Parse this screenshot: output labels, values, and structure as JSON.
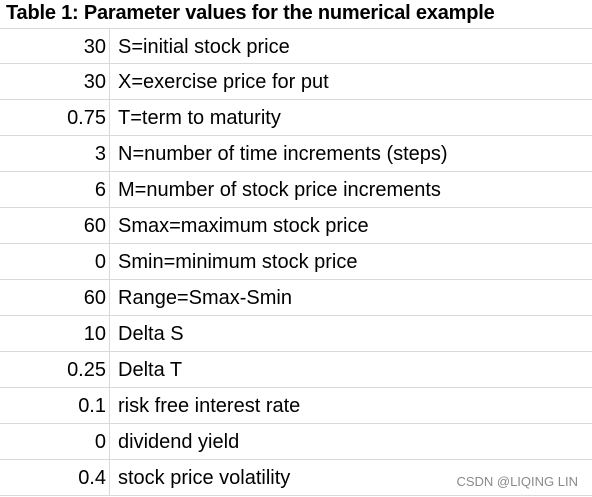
{
  "table": {
    "title": "Table 1: Parameter values for the numerical example",
    "rows": [
      {
        "value": "30",
        "desc": "S=initial stock price"
      },
      {
        "value": "30",
        "desc": "X=exercise price for put"
      },
      {
        "value": "0.75",
        "desc": "T=term to maturity"
      },
      {
        "value": "3",
        "desc": "N=number of time increments (steps)"
      },
      {
        "value": "6",
        "desc": "M=number of stock price increments"
      },
      {
        "value": "60",
        "desc": "Smax=maximum stock price"
      },
      {
        "value": "0",
        "desc": "Smin=minimum stock price"
      },
      {
        "value": "60",
        "desc": "Range=Smax-Smin"
      },
      {
        "value": "10",
        "desc": "Delta S"
      },
      {
        "value": "0.25",
        "desc": "Delta T"
      },
      {
        "value": "0.1",
        "desc": "risk free interest rate"
      },
      {
        "value": "0",
        "desc": "dividend yield"
      },
      {
        "value": "0.4",
        "desc": "stock price volatility"
      }
    ]
  },
  "watermark": "CSDN @LIQING LIN"
}
